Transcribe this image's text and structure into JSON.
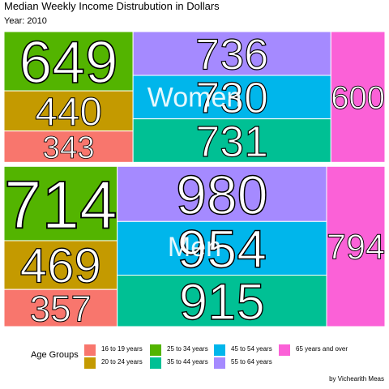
{
  "chart_data": {
    "type": "treemap",
    "title": "Median Weekly Income Distrubution in Dollars",
    "subtitle": "Year: 2010",
    "caption": "by Vichearith Meas",
    "legend": {
      "title": "Age Groups",
      "position": "bottom"
    },
    "colors": {
      "16 to 19 years": "#F8766D",
      "20 to 24 years": "#C49A00",
      "25 to 34 years": "#53B400",
      "35 to 44 years": "#00C094",
      "45 to 54 years": "#00B6EB",
      "55 to 64 years": "#A58AFF",
      "65 years and over": "#FB61D7"
    },
    "age_groups": [
      "16 to 19 years",
      "20 to 24 years",
      "25 to 34 years",
      "35 to 44 years",
      "45 to 54 years",
      "55 to 64 years",
      "65 years and over"
    ],
    "groups": [
      {
        "name": "Women",
        "values": {
          "16 to 19 years": 343,
          "20 to 24 years": 440,
          "25 to 34 years": 649,
          "35 to 44 years": 731,
          "45 to 54 years": 730,
          "55 to 64 years": 736,
          "65 years and over": 600
        }
      },
      {
        "name": "Men",
        "values": {
          "16 to 19 years": 357,
          "20 to 24 years": 469,
          "25 to 34 years": 714,
          "35 to 44 years": 915,
          "45 to 54 years": 954,
          "55 to 64 years": 980,
          "65 years and over": 794
        }
      }
    ]
  }
}
